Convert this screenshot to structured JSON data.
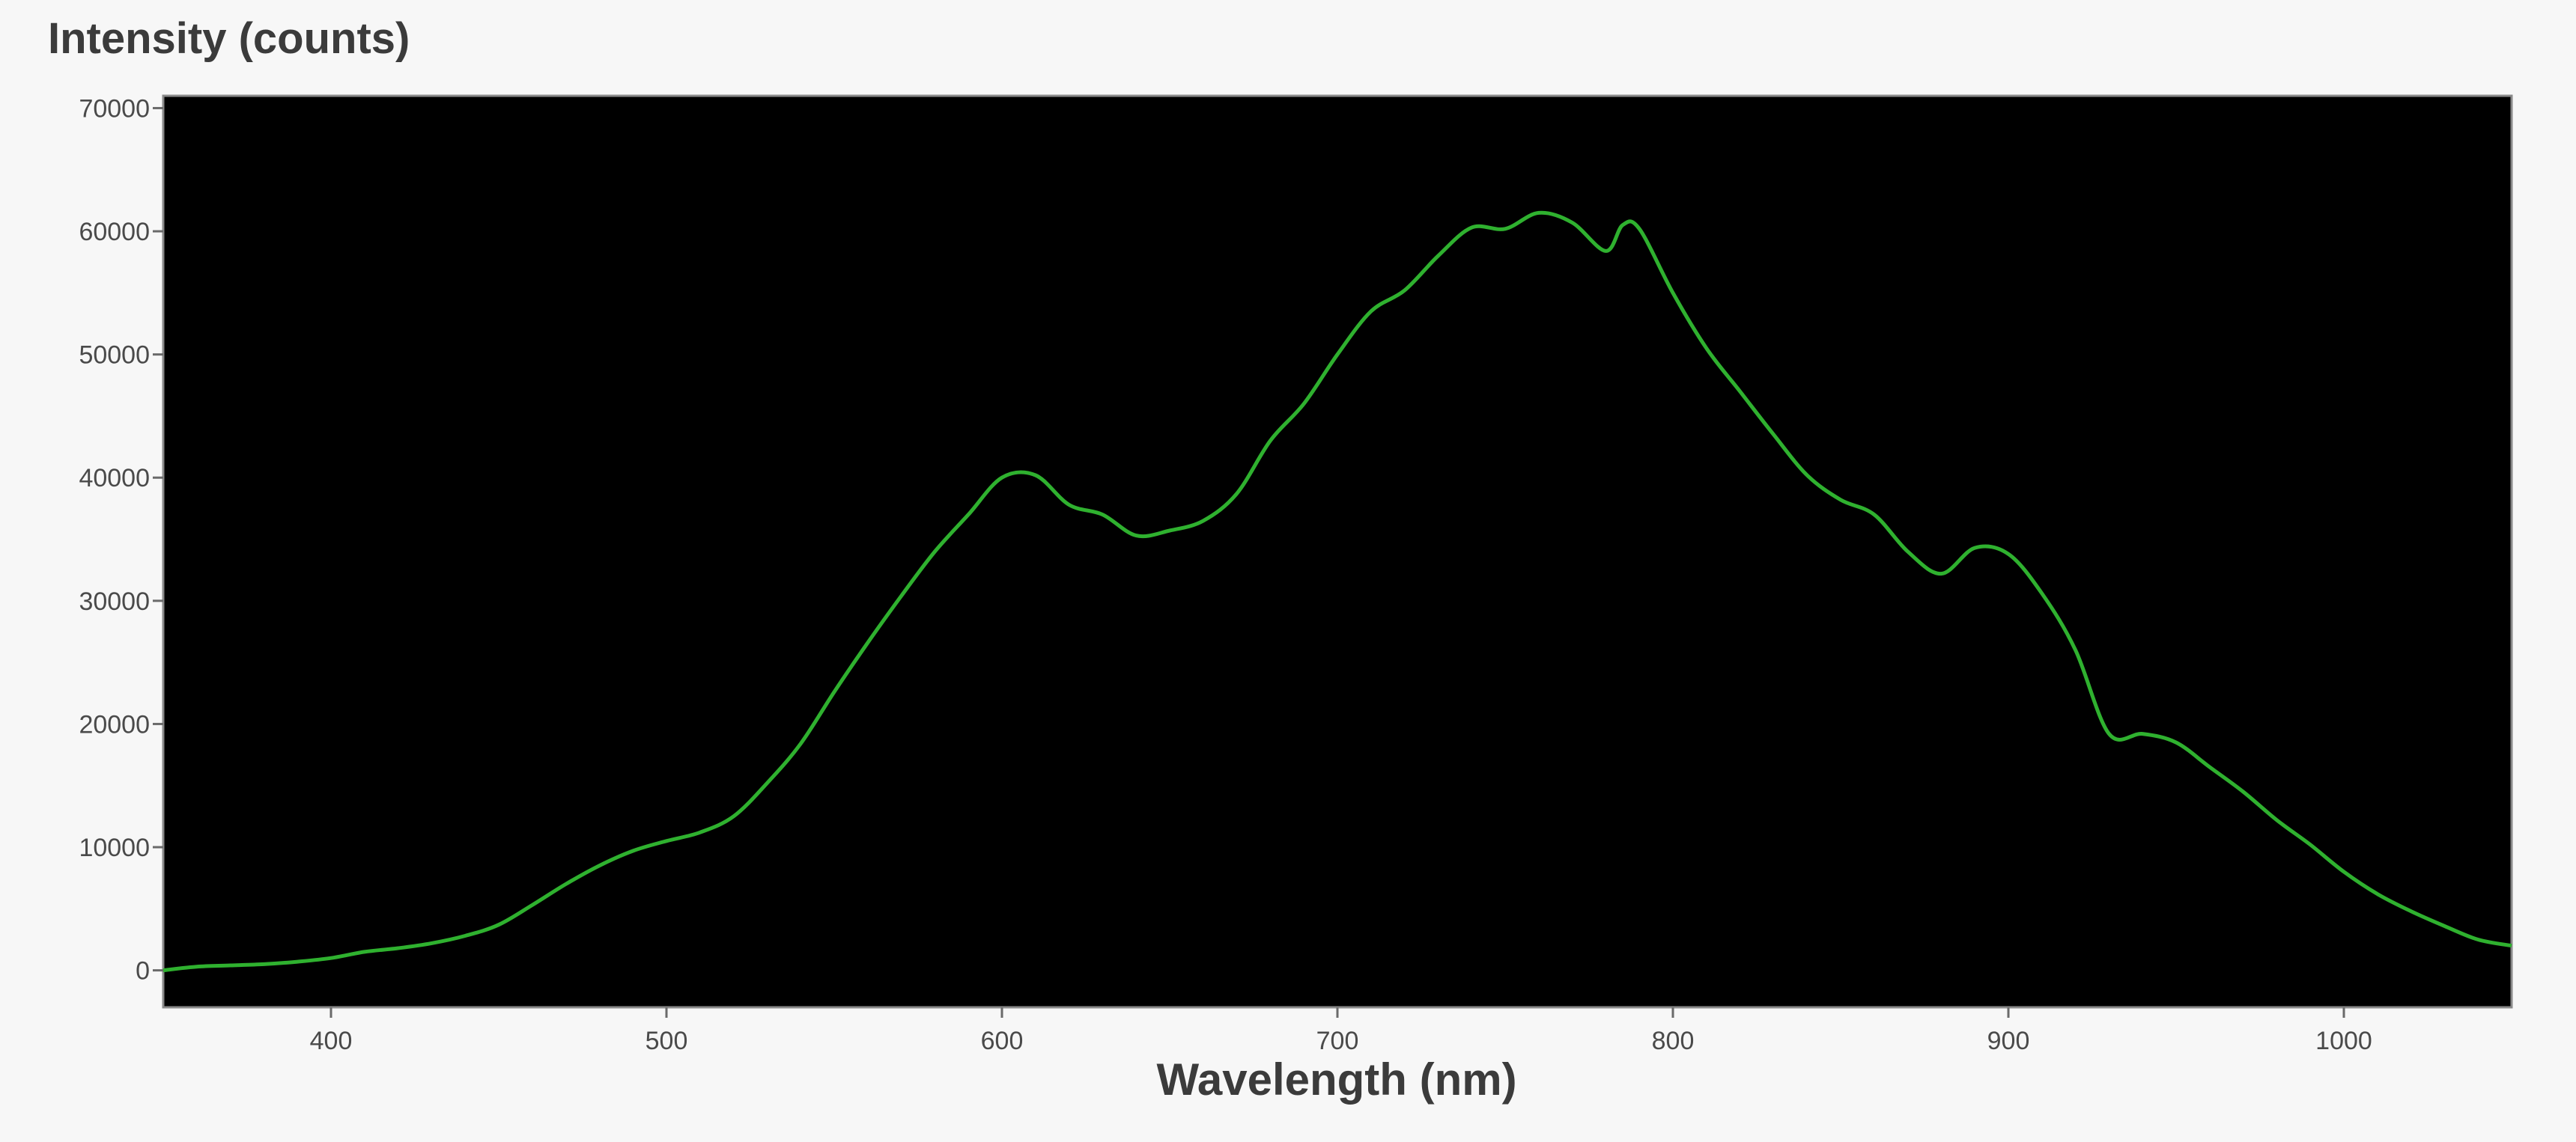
{
  "chart_data": {
    "type": "line",
    "title": "",
    "ylabel": "Intensity (counts)",
    "xlabel": "Wavelength (nm)",
    "xlim": [
      350,
      1050
    ],
    "ylim": [
      -3000,
      71000
    ],
    "x_ticks": [
      400,
      500,
      600,
      700,
      800,
      900,
      1000
    ],
    "y_ticks": [
      0,
      10000,
      20000,
      30000,
      40000,
      50000,
      60000,
      70000
    ],
    "x_tick_labels": [
      "400",
      "500",
      "600",
      "700",
      "800",
      "900",
      "1000"
    ],
    "y_tick_labels": [
      "0",
      "10000",
      "20000",
      "30000",
      "40000",
      "50000",
      "60000",
      "70000"
    ],
    "grid": false,
    "background": "#000000",
    "line_color": "#2fb12f",
    "series": [
      {
        "x": [
          350,
          360,
          370,
          380,
          390,
          400,
          410,
          420,
          430,
          440,
          450,
          460,
          470,
          480,
          490,
          500,
          510,
          520,
          530,
          540,
          550,
          560,
          570,
          580,
          590,
          600,
          610,
          620,
          630,
          640,
          650,
          660,
          670,
          680,
          690,
          700,
          710,
          720,
          730,
          740,
          750,
          760,
          770,
          780,
          785,
          790,
          800,
          810,
          820,
          830,
          840,
          850,
          860,
          870,
          880,
          890,
          900,
          910,
          920,
          930,
          940,
          950,
          960,
          970,
          980,
          990,
          1000,
          1010,
          1020,
          1030,
          1040,
          1050
        ],
        "y": [
          0,
          300,
          400,
          500,
          700,
          1000,
          1500,
          1800,
          2200,
          2800,
          3700,
          5300,
          7000,
          8500,
          9700,
          10500,
          11200,
          12500,
          15200,
          18400,
          22600,
          26600,
          30400,
          34000,
          37000,
          40000,
          40200,
          37800,
          37000,
          35300,
          35700,
          36500,
          38700,
          43000,
          46000,
          50000,
          53500,
          55200,
          58000,
          60300,
          60200,
          61500,
          60700,
          58400,
          60500,
          60200,
          55000,
          50500,
          47000,
          43500,
          40200,
          38200,
          37000,
          34000,
          32200,
          34300,
          33800,
          30600,
          26000,
          19200,
          19200,
          18500,
          16500,
          14500,
          12200,
          10200,
          8000,
          6200,
          4800,
          3600,
          2500,
          2000
        ]
      }
    ]
  }
}
